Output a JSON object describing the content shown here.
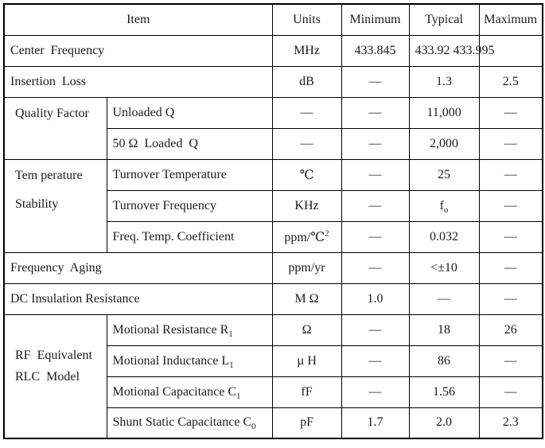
{
  "table": {
    "headers": {
      "item": "Item",
      "units": "Units",
      "minimum": "Minimum",
      "typical": "Typical",
      "maximum": "Maximum"
    },
    "groups": {
      "quality_factor": "Quality Factor",
      "temperature_line1": "Tem perature",
      "temperature_line2": "Stability",
      "rf_line1": "RF  Equivalent",
      "rf_line2": "RLC  Model"
    },
    "rows": [
      {
        "item": "Center  Frequency",
        "units": "MHz",
        "min": "433.845",
        "typ": "433.92 433.995",
        "max": ""
      },
      {
        "item": "Insertion  Loss",
        "units": "dB",
        "min": "—",
        "typ": "1.3",
        "max": "2.5"
      },
      {
        "item": "Unloaded Q",
        "units": "—",
        "min": "—",
        "typ": "11,000",
        "max": "—"
      },
      {
        "item": "50 Ω  Loaded  Q",
        "units": "—",
        "min": "—",
        "typ": "2,000",
        "max": "—"
      },
      {
        "item": "Turnover Temperature",
        "units": "℃",
        "min": "—",
        "typ": "25",
        "max": "—"
      },
      {
        "item": "Turnover Frequency",
        "units": "KHz",
        "min": "—",
        "typ": "f",
        "typ_sub": "o",
        "max": "—"
      },
      {
        "item": "Freq. Temp. Coefficient",
        "units": "ppm/℃",
        "units_sup": "2",
        "min": "—",
        "typ": "0.032",
        "max": "—"
      },
      {
        "item": "Frequency  Aging",
        "units": "ppm/yr",
        "min": "—",
        "typ": "<±10",
        "max": "—"
      },
      {
        "item": "DC Insulation Resistance",
        "units": "M Ω",
        "min": "1.0",
        "typ": "—",
        "max": "—"
      },
      {
        "item": "Motional Resistance R",
        "item_sub": "1",
        "units": "Ω",
        "min": "—",
        "typ": "18",
        "max": "26"
      },
      {
        "item": "Motional Inductance L",
        "item_sub": "1",
        "units": "µ H",
        "min": "—",
        "typ": "86",
        "max": "—"
      },
      {
        "item": "Motional Capacitance C",
        "item_sub": "1",
        "units": "fF",
        "min": "—",
        "typ": "1.56",
        "max": "—"
      },
      {
        "item": "Shunt Static Capacitance C",
        "item_sub": "0",
        "units": "pF",
        "min": "1.7",
        "typ": "2.0",
        "max": "2.3"
      }
    ]
  },
  "colors": {
    "border": "#000000",
    "text": "#1c1c1c",
    "background": "#ffffff"
  }
}
